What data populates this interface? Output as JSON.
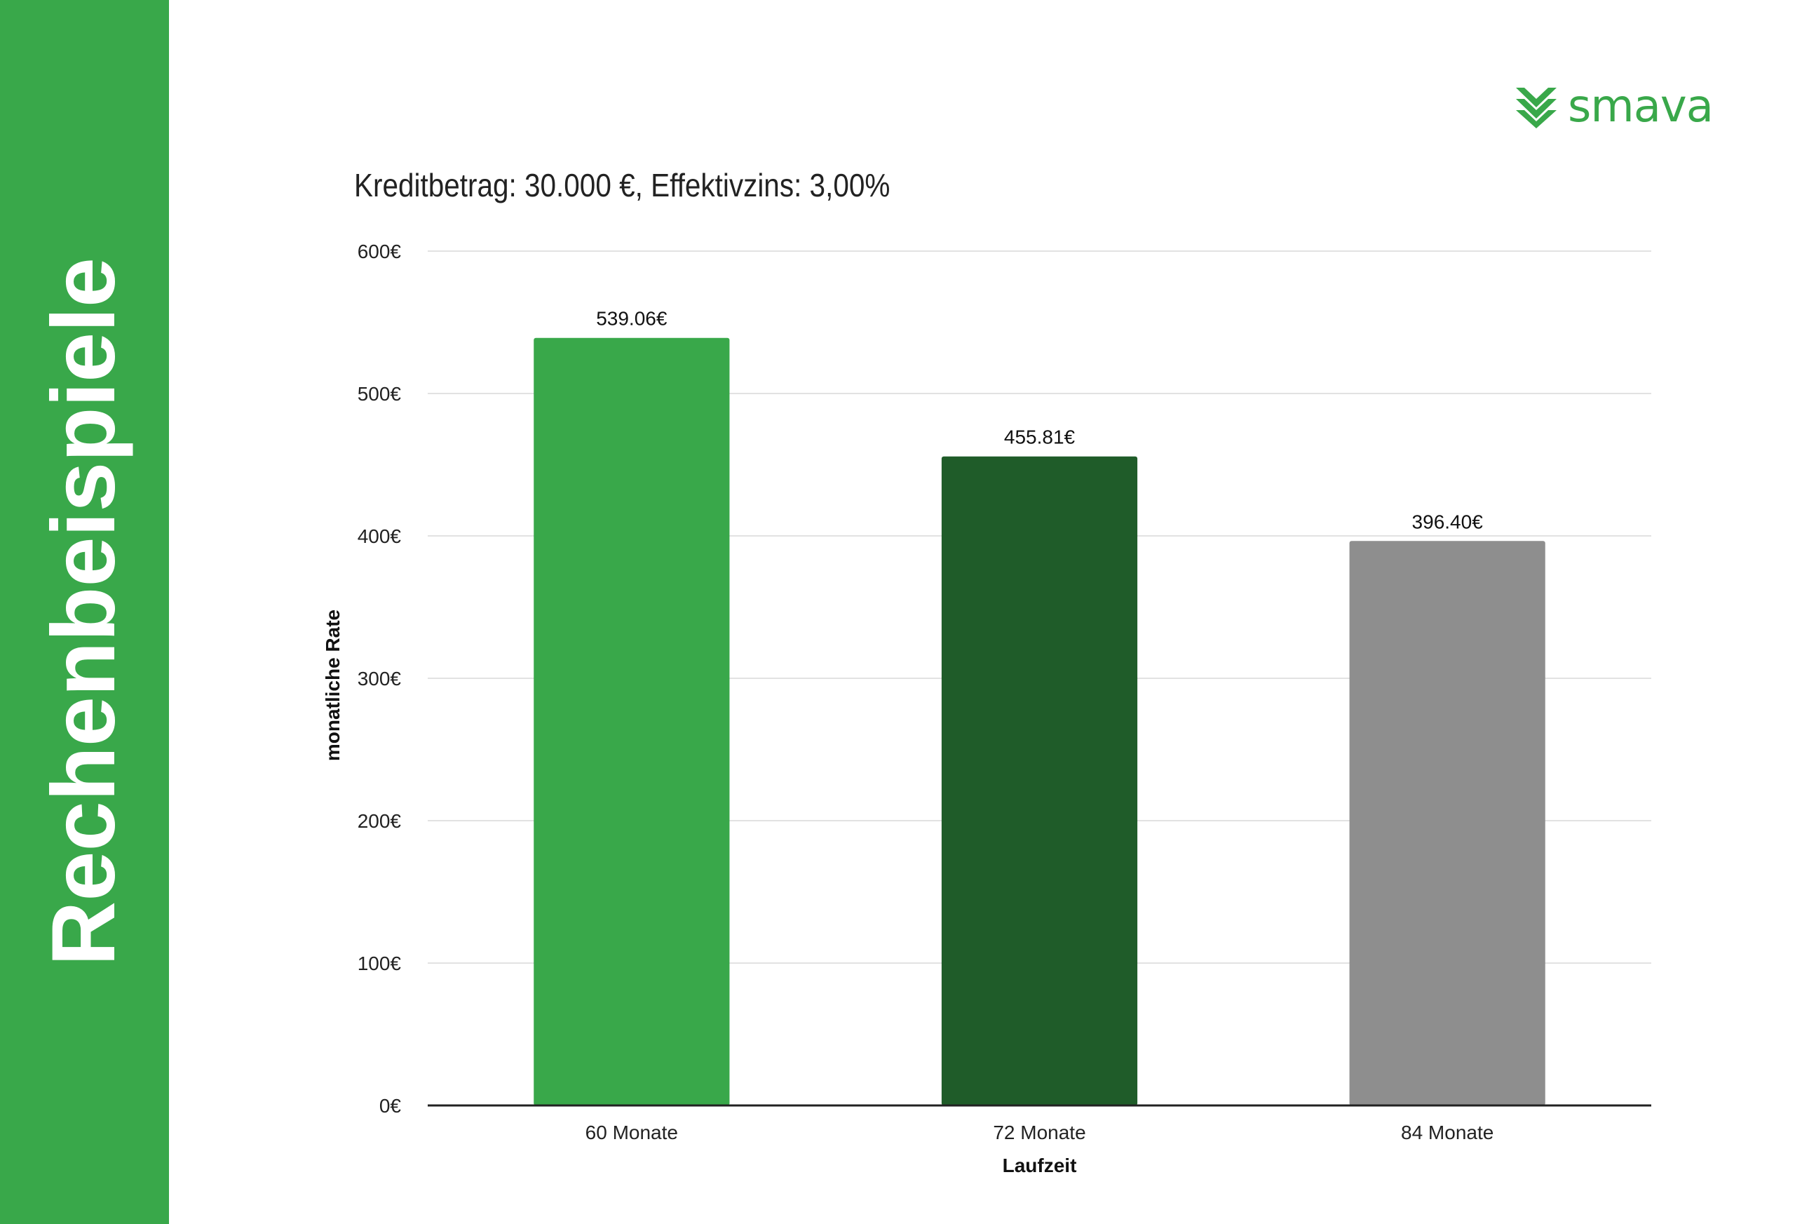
{
  "sidebar": {
    "title": "Rechenbeispiele",
    "color": "#39a84a"
  },
  "logo": {
    "text": "smava",
    "icon": "smava-chevron-icon",
    "color": "#39a84a"
  },
  "chart_data": {
    "type": "bar",
    "title": "Kreditbetrag: 30.000 €, Effektivzins: 3,00%",
    "xlabel": "Laufzeit",
    "ylabel": "monatliche Rate",
    "categories": [
      "60 Monate",
      "72 Monate",
      "84 Monate"
    ],
    "values": [
      539.06,
      455.81,
      396.4
    ],
    "data_labels": [
      "539.06€",
      "455.81€",
      "396.40€"
    ],
    "colors": [
      "#39a84a",
      "#1f5c29",
      "#8e8e8e"
    ],
    "ylim": [
      0,
      600
    ],
    "yticks": [
      0,
      100,
      200,
      300,
      400,
      500,
      600
    ],
    "ytick_labels": [
      "0€",
      "100€",
      "200€",
      "300€",
      "400€",
      "500€",
      "600€"
    ],
    "grid": true,
    "legend": "none"
  }
}
